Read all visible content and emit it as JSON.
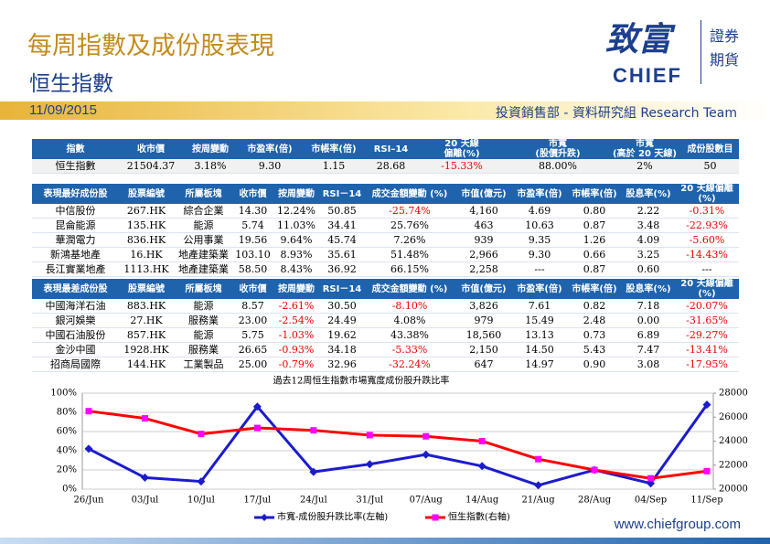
{
  "header": {
    "title": "每周指數及成份股表現",
    "subtitle": "恒生指數",
    "date": "11/09/2015",
    "department": "投資銷售部 - 資料研究組 Research Team",
    "logo_cn": "致富",
    "logo_en": "CHIEF",
    "logo_side": [
      "證券",
      "期貨"
    ]
  },
  "index_table": {
    "headers": [
      "指數",
      "收市價",
      "按周變動",
      "市盈率(倍)",
      "市帳率(倍)",
      "RSI–14",
      "20 天線\n偏離(%)",
      "市寬\n(股價升跌)",
      "市寬\n(高於 20 天線)",
      "成份股數目"
    ],
    "rows": [
      [
        "恒生指數",
        "21504.37",
        "3.18%",
        "9.30",
        "1.15",
        "28.68",
        "-15.33%",
        "88.00%",
        "2%",
        "50"
      ]
    ]
  },
  "best_table": {
    "headers": [
      "表現最好成份股",
      "股票編號",
      "所屬板塊",
      "收市價",
      "按周變動",
      "RSI－14",
      "成交金額變動 (%)",
      "市值(億元)",
      "市盈率(倍)",
      "市帳率(倍)",
      "股息率(%)",
      "20 天線偏離(%)"
    ],
    "rows": [
      [
        "中信股份",
        "267.HK",
        "綜合企業",
        "14.30",
        "12.24%",
        "50.85",
        "-25.74%",
        "4,160",
        "4.69",
        "0.80",
        "2.22",
        "-0.31%"
      ],
      [
        "昆侖能源",
        "135.HK",
        "能源",
        "5.74",
        "11.03%",
        "34.41",
        "25.76%",
        "463",
        "10.63",
        "0.87",
        "3.48",
        "-22.93%"
      ],
      [
        "華潤電力",
        "836.HK",
        "公用事業",
        "19.56",
        "9.64%",
        "45.74",
        "7.26%",
        "939",
        "9.35",
        "1.26",
        "4.09",
        "-5.60%"
      ],
      [
        "新鴻基地產",
        "16.HK",
        "地產建築業",
        "103.10",
        "8.93%",
        "35.61",
        "51.48%",
        "2,966",
        "9.30",
        "0.66",
        "3.25",
        "-14.43%"
      ],
      [
        "長江實業地產",
        "1113.HK",
        "地產建築業",
        "58.50",
        "8.43%",
        "36.92",
        "66.15%",
        "2,258",
        "---",
        "0.87",
        "0.60",
        "---"
      ]
    ]
  },
  "worst_table": {
    "headers": [
      "表現最差成份股",
      "股票編號",
      "所屬板塊",
      "收市價",
      "按周變動",
      "RSI－14",
      "成交金額變動 (%)",
      "市值(億元)",
      "市盈率(倍)",
      "市帳率(倍)",
      "股息率(%)",
      "20 天線偏離(%)"
    ],
    "rows": [
      [
        "中國海洋石油",
        "883.HK",
        "能源",
        "8.57",
        "-2.61%",
        "30.50",
        "-8.10%",
        "3,826",
        "7.61",
        "0.82",
        "7.18",
        "-20.07%"
      ],
      [
        "銀河娛樂",
        "27.HK",
        "服務業",
        "23.00",
        "-2.54%",
        "24.49",
        "4.08%",
        "979",
        "15.49",
        "2.48",
        "0.00",
        "-31.65%"
      ],
      [
        "中國石油股份",
        "857.HK",
        "能源",
        "5.75",
        "-1.03%",
        "19.62",
        "43.38%",
        "18,560",
        "13.13",
        "0.73",
        "6.89",
        "-29.27%"
      ],
      [
        "金沙中國",
        "1928.HK",
        "服務業",
        "26.65",
        "-0.93%",
        "34.18",
        "-5.33%",
        "2,150",
        "14.50",
        "5.43",
        "7.47",
        "-13.41%"
      ],
      [
        "招商局國際",
        "144.HK",
        "工業製品",
        "25.00",
        "-0.79%",
        "32.96",
        "-32.24%",
        "647",
        "14.97",
        "0.90",
        "3.08",
        "-17.95%"
      ]
    ]
  },
  "chart_data": {
    "type": "line",
    "title": "過去12周恒生指數市場寬度成份股升跌比率",
    "categories": [
      "26/Jun",
      "03/Jul",
      "10/Jul",
      "17/Jul",
      "24/Jul",
      "31/Jul",
      "07/Aug",
      "14/Aug",
      "21/Aug",
      "28/Aug",
      "04/Sep",
      "11/Sep"
    ],
    "series": [
      {
        "name": "市寬-成份股升跌比率(左軸)",
        "color": "#1c1ccc",
        "values": [
          42,
          12,
          8,
          86,
          18,
          26,
          36,
          24,
          4,
          20,
          6,
          88
        ]
      },
      {
        "name": "恒生指數(右軸)",
        "color": "#ff0000",
        "marker_color": "#ff00ff",
        "axis": "y2",
        "values": [
          26500,
          25900,
          24600,
          25100,
          24900,
          24500,
          24400,
          24000,
          22500,
          21600,
          20900,
          21500
        ]
      }
    ],
    "ylim": [
      0,
      100
    ],
    "yticks": [
      {
        "value": 0,
        "label": "0%"
      },
      {
        "value": 20,
        "label": "20%"
      },
      {
        "value": 40,
        "label": "40%"
      },
      {
        "value": 60,
        "label": "60%"
      },
      {
        "value": 80,
        "label": "80%"
      },
      {
        "value": 100,
        "label": "100%"
      }
    ],
    "y2lim": [
      20000,
      28000
    ],
    "y2ticks": [
      20000,
      22000,
      24000,
      26000,
      28000
    ],
    "grid": true
  },
  "footer": "www.chiefgroup.com"
}
